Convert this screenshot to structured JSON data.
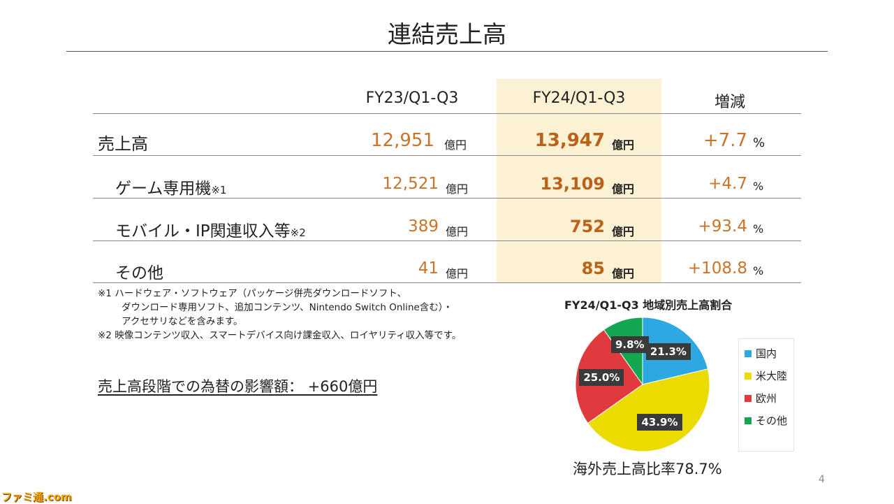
{
  "title": "連結売上高",
  "table": {
    "headers": [
      "FY23/Q1-Q3",
      "FY24/Q1-Q3",
      "増減"
    ],
    "rows": [
      {
        "label": "売上高",
        "sup": "",
        "fy23": "12,951",
        "fy24": "13,947",
        "change": "+7.7",
        "unit": "億円",
        "pct": "%"
      },
      {
        "label": "ゲーム専用機",
        "sup": "※1",
        "fy23": "12,521",
        "fy24": "13,109",
        "change": "+4.7",
        "unit": "億円",
        "pct": "%"
      },
      {
        "label": "モバイル・IP関連収入等",
        "sup": "※2",
        "fy23": "389",
        "fy24": "752",
        "change": "+93.4",
        "unit": "億円",
        "pct": "%"
      },
      {
        "label": "その他",
        "sup": "",
        "fy23": "41",
        "fy24": "85",
        "change": "+108.8",
        "unit": "億円",
        "pct": "%"
      }
    ]
  },
  "notes": {
    "n1_line1": "※1 ハードウェア・ソフトウェア（パッケージ併売ダウンロードソフト、",
    "n1_line2": "ダウンロード専用ソフト、追加コンテンツ、Nintendo Switch Online含む）・",
    "n1_line3": "アクセサリなどを含みます。",
    "n2": "※2 映像コンテンツ収入、スマートデバイス向け課金収入、ロイヤリティ収入等です。"
  },
  "fx_impact": "売上高段階での為替の影響額：  +660億円",
  "chart_data": {
    "type": "pie",
    "title": "FY24/Q1-Q3 地域別売上高割合",
    "categories": [
      "国内",
      "米大陸",
      "欧州",
      "その他"
    ],
    "values": [
      21.3,
      43.9,
      25.0,
      9.8
    ],
    "labels": [
      "21.3%",
      "43.9%",
      "25.0%",
      "9.8%"
    ],
    "colors": [
      "#2ea8e0",
      "#ecdb00",
      "#e03a3e",
      "#14a651"
    ],
    "legend": "right"
  },
  "overseas_ratio": "海外売上高比率78.7%",
  "page_number": "4",
  "logo": "ファミ通.com"
}
